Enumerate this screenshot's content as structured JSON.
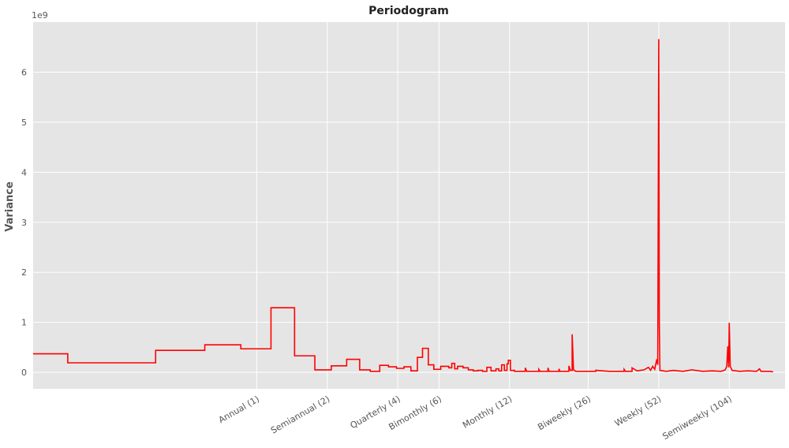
{
  "chart_data": {
    "type": "line",
    "title": "Periodogram",
    "xlabel": "",
    "ylabel": "Variance",
    "y_offset_label": "1e9",
    "x_scale": "log",
    "xlim": [
      0.111,
      180
    ],
    "ylim": [
      -0.33,
      7.0
    ],
    "y_ticks": [
      0,
      1,
      2,
      3,
      4,
      5,
      6
    ],
    "x_ticks": [
      {
        "value": 1,
        "label": "Annual (1)"
      },
      {
        "value": 2,
        "label": "Semiannual (2)"
      },
      {
        "value": 4,
        "label": "Quarterly (4)"
      },
      {
        "value": 6,
        "label": "Bimonthly (6)"
      },
      {
        "value": 12,
        "label": "Monthly (12)"
      },
      {
        "value": 26,
        "label": "Biweekly (26)"
      },
      {
        "value": 52,
        "label": "Weekly (52)"
      },
      {
        "value": 104,
        "label": "Semiweekly (104)"
      }
    ],
    "grid": true,
    "line_color": "#ff0000",
    "background_color": "#e5e5e5",
    "series": [
      {
        "values": [
          [
            0.111,
            0.37
          ],
          [
            0.156,
            0.37
          ],
          [
            0.156,
            0.19
          ],
          [
            0.37,
            0.19
          ],
          [
            0.37,
            0.44
          ],
          [
            0.6,
            0.44
          ],
          [
            0.6,
            0.55
          ],
          [
            0.855,
            0.55
          ],
          [
            0.855,
            0.47
          ],
          [
            1.15,
            0.47
          ],
          [
            1.15,
            1.29
          ],
          [
            1.45,
            1.29
          ],
          [
            1.45,
            0.33
          ],
          [
            1.77,
            0.33
          ],
          [
            1.77,
            0.05
          ],
          [
            2.08,
            0.05
          ],
          [
            2.08,
            0.13
          ],
          [
            2.42,
            0.13
          ],
          [
            2.42,
            0.26
          ],
          [
            2.75,
            0.26
          ],
          [
            2.75,
            0.05
          ],
          [
            3.05,
            0.05
          ],
          [
            3.05,
            0.02
          ],
          [
            3.35,
            0.02
          ],
          [
            3.35,
            0.14
          ],
          [
            3.65,
            0.14
          ],
          [
            3.65,
            0.11
          ],
          [
            3.95,
            0.11
          ],
          [
            3.95,
            0.08
          ],
          [
            4.25,
            0.08
          ],
          [
            4.25,
            0.11
          ],
          [
            4.55,
            0.11
          ],
          [
            4.55,
            0.03
          ],
          [
            4.85,
            0.03
          ],
          [
            4.85,
            0.3
          ],
          [
            5.1,
            0.3
          ],
          [
            5.1,
            0.48
          ],
          [
            5.4,
            0.48
          ],
          [
            5.4,
            0.15
          ],
          [
            5.7,
            0.15
          ],
          [
            5.7,
            0.06
          ],
          [
            6.1,
            0.06
          ],
          [
            6.1,
            0.12
          ],
          [
            6.6,
            0.12
          ],
          [
            6.6,
            0.09
          ],
          [
            6.8,
            0.09
          ],
          [
            6.8,
            0.18
          ],
          [
            7.0,
            0.18
          ],
          [
            7.0,
            0.07
          ],
          [
            7.2,
            0.07
          ],
          [
            7.2,
            0.12
          ],
          [
            7.6,
            0.12
          ],
          [
            7.6,
            0.09
          ],
          [
            8.0,
            0.09
          ],
          [
            8.0,
            0.05
          ],
          [
            8.4,
            0.05
          ],
          [
            8.4,
            0.03
          ],
          [
            8.8,
            0.03
          ],
          [
            8.8,
            0.04
          ],
          [
            9.2,
            0.04
          ],
          [
            9.2,
            0.02
          ],
          [
            9.6,
            0.02
          ],
          [
            9.6,
            0.1
          ],
          [
            10.0,
            0.1
          ],
          [
            10.0,
            0.03
          ],
          [
            10.5,
            0.03
          ],
          [
            10.5,
            0.07
          ],
          [
            10.8,
            0.07
          ],
          [
            10.8,
            0.03
          ],
          [
            11.1,
            0.03
          ],
          [
            11.1,
            0.15
          ],
          [
            11.4,
            0.15
          ],
          [
            11.4,
            0.04
          ],
          [
            11.7,
            0.04
          ],
          [
            11.7,
            0.17
          ],
          [
            11.85,
            0.17
          ],
          [
            11.85,
            0.24
          ],
          [
            12.1,
            0.24
          ],
          [
            12.1,
            0.04
          ],
          [
            12.6,
            0.04
          ],
          [
            12.6,
            0.02
          ],
          [
            14.0,
            0.02
          ],
          [
            14.0,
            0.09
          ],
          [
            14.2,
            0.02
          ],
          [
            16.0,
            0.02
          ],
          [
            16.0,
            0.06
          ],
          [
            16.2,
            0.02
          ],
          [
            17.5,
            0.02
          ],
          [
            17.5,
            0.09
          ],
          [
            17.7,
            0.02
          ],
          [
            19.5,
            0.02
          ],
          [
            19.5,
            0.07
          ],
          [
            19.7,
            0.02
          ],
          [
            21.5,
            0.02
          ],
          [
            21.5,
            0.13
          ],
          [
            21.8,
            0.04
          ],
          [
            22.2,
            0.04
          ],
          [
            22.2,
            0.76
          ],
          [
            22.5,
            0.05
          ],
          [
            23.0,
            0.02
          ],
          [
            28.0,
            0.02
          ],
          [
            28.0,
            0.04
          ],
          [
            32.0,
            0.02
          ],
          [
            37.0,
            0.02
          ],
          [
            37.0,
            0.06
          ],
          [
            37.5,
            0.02
          ],
          [
            40.0,
            0.02
          ],
          [
            40.0,
            0.09
          ],
          [
            42.0,
            0.03
          ],
          [
            45.0,
            0.05
          ],
          [
            47.0,
            0.1
          ],
          [
            48.0,
            0.04
          ],
          [
            49.0,
            0.12
          ],
          [
            50.0,
            0.06
          ],
          [
            51.0,
            0.26
          ],
          [
            51.5,
            0.15
          ],
          [
            52.0,
            6.66
          ],
          [
            52.3,
            0.95
          ],
          [
            52.6,
            0.04
          ],
          [
            56.0,
            0.02
          ],
          [
            60.0,
            0.04
          ],
          [
            66.0,
            0.02
          ],
          [
            72.0,
            0.05
          ],
          [
            80.0,
            0.02
          ],
          [
            88.0,
            0.03
          ],
          [
            96.0,
            0.02
          ],
          [
            100.0,
            0.05
          ],
          [
            101.5,
            0.12
          ],
          [
            102.5,
            0.52
          ],
          [
            103.4,
            0.1
          ],
          [
            104.0,
            0.99
          ],
          [
            105.0,
            0.12
          ],
          [
            107.0,
            0.04
          ],
          [
            115.0,
            0.02
          ],
          [
            125.0,
            0.03
          ],
          [
            136.0,
            0.02
          ],
          [
            140.0,
            0.07
          ],
          [
            142.0,
            0.02
          ],
          [
            155.0,
            0.02
          ],
          [
            160.0,
            0.01
          ]
        ]
      }
    ]
  }
}
